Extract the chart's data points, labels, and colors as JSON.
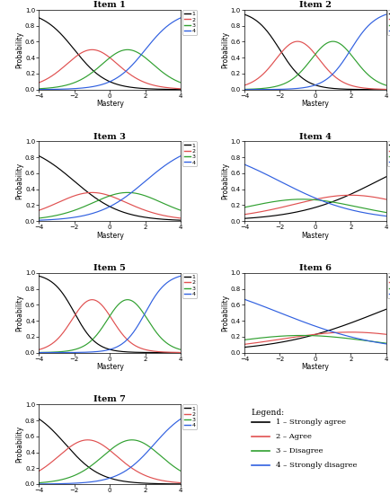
{
  "items": [
    {
      "title": "Item 1",
      "a": 1.1,
      "b": [
        -2.0,
        0.0,
        2.0
      ]
    },
    {
      "title": "Item 2",
      "a": 1.4,
      "b": [
        -2.0,
        0.0,
        2.0
      ]
    },
    {
      "title": "Item 3",
      "a": 0.75,
      "b": [
        -2.0,
        0.0,
        2.0
      ]
    },
    {
      "title": "Item 4",
      "a": 0.5,
      "b": [
        -5.0,
        -2.0,
        0.5
      ],
      "reverse": true
    },
    {
      "title": "Item 5",
      "a": 1.6,
      "b": [
        -2.0,
        0.0,
        2.0
      ]
    },
    {
      "title": "Item 6",
      "a": 0.4,
      "b": [
        -5.0,
        -1.5,
        1.5
      ],
      "reverse": true
    },
    {
      "title": "Item 7",
      "a": 1.0,
      "b": [
        -2.5,
        0.0,
        2.5
      ]
    }
  ],
  "colors": [
    "black",
    "#e05050",
    "#30a030",
    "#3060e0"
  ],
  "xlabel": "Mastery",
  "ylabel": "Probability",
  "xlim": [
    -4,
    4
  ],
  "ylim": [
    0,
    1.05
  ],
  "xticks": [
    -4,
    -2,
    0,
    2,
    4
  ],
  "yticks": [
    0.0,
    0.2,
    0.4,
    0.6,
    0.8,
    1.0
  ],
  "legend_labels": [
    "1",
    "2",
    "3",
    "4"
  ],
  "legend_full_title": "Legend:",
  "legend_full": [
    "1 – Strongly agree",
    "2 – Agree",
    "3 – Disagree",
    "4 – Strongly disagree"
  ]
}
